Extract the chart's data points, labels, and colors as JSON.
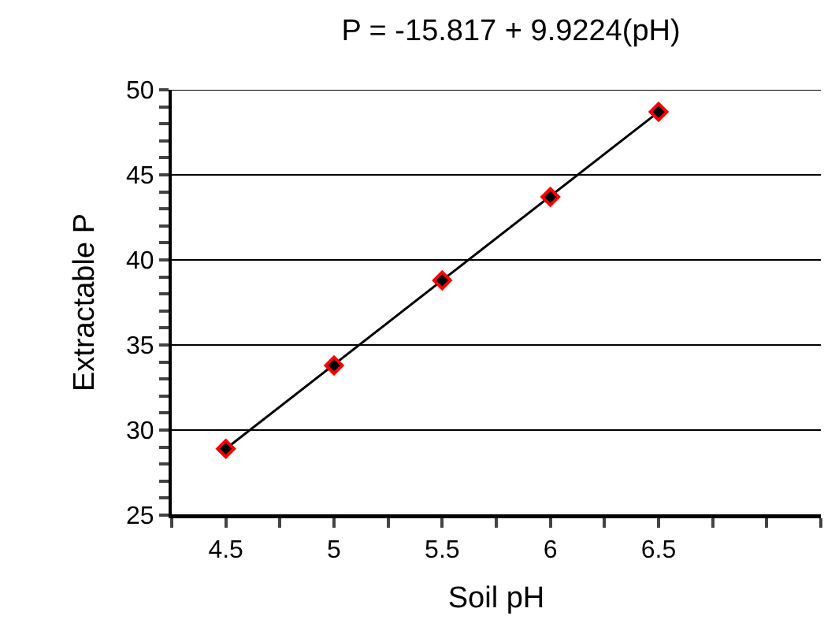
{
  "chart_data": {
    "type": "scatter",
    "title": "P = -15.817 + 9.9224(pH)",
    "xlabel": "Soil pH",
    "ylabel": "Extractable P",
    "series": [
      {
        "type": "line",
        "color": "#000000",
        "x": [
          4.5,
          6.5
        ],
        "values": [
          28.9,
          48.7
        ],
        "marker": "none"
      },
      {
        "color": "#ff0000",
        "x": [
          4.5,
          5,
          5.5,
          6,
          6.5
        ],
        "values": [
          28.9,
          33.8,
          38.8,
          43.7,
          48.7
        ],
        "marker": "diamond"
      }
    ],
    "xlim": [
      4.25,
      7.25
    ],
    "xticks": [
      {
        "value": 4.25,
        "label": null
      },
      4.5,
      {
        "value": 4.75,
        "label": null
      },
      5,
      {
        "value": 5.25,
        "label": null
      },
      5.5,
      {
        "value": 5.75,
        "label": null
      },
      6,
      {
        "value": 6.25,
        "label": null
      },
      6.5,
      {
        "value": 6.75,
        "label": null
      },
      {
        "value": 7,
        "label": null
      },
      {
        "value": 7.25,
        "label": null
      }
    ],
    "ylim": [
      25,
      50
    ],
    "yticks": [
      25,
      {
        "value": 26,
        "label": null
      },
      {
        "value": 27,
        "label": null
      },
      {
        "value": 28,
        "label": null
      },
      {
        "value": 29,
        "label": null
      },
      30,
      {
        "value": 31,
        "label": null
      },
      {
        "value": 32,
        "label": null
      },
      {
        "value": 33,
        "label": null
      },
      {
        "value": 34,
        "label": null
      },
      35,
      {
        "value": 36,
        "label": null
      },
      {
        "value": 37,
        "label": null
      },
      {
        "value": 38,
        "label": null
      },
      {
        "value": 39,
        "label": null
      },
      40,
      {
        "value": 41,
        "label": null
      },
      {
        "value": 42,
        "label": null
      },
      {
        "value": 43,
        "label": null
      },
      {
        "value": 44,
        "label": null
      },
      45,
      {
        "value": 46,
        "label": null
      },
      {
        "value": 47,
        "label": null
      },
      {
        "value": 48,
        "label": null
      },
      {
        "value": 49,
        "label": null
      },
      50
    ],
    "grid": "y"
  }
}
